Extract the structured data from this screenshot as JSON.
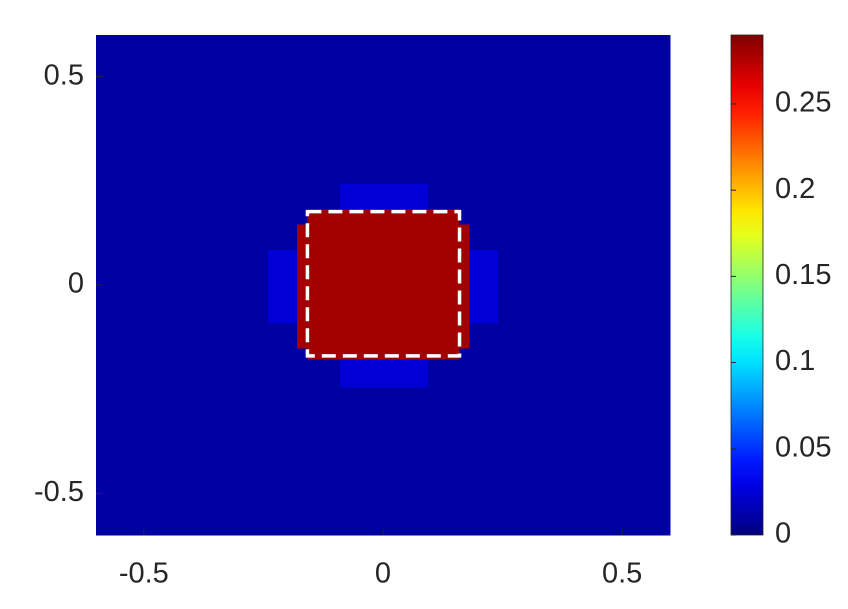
{
  "chart_data": {
    "type": "heatmap",
    "colormap": "jet",
    "x_edges": [
      -0.6,
      -0.24,
      -0.18,
      -0.158,
      -0.09,
      0.094,
      0.16,
      0.181,
      0.24,
      0.6
    ],
    "y_edges": [
      -0.6,
      -0.245,
      -0.178,
      -0.151,
      -0.09,
      0.085,
      0.146,
      0.183,
      0.244,
      0.6
    ],
    "z": [
      [
        0.01,
        0.01,
        0.01,
        0.01,
        0.01,
        0.01,
        0.01,
        0.01,
        0.01
      ],
      [
        0.01,
        0.01,
        0.01,
        0.01,
        0.025,
        0.01,
        0.01,
        0.01,
        0.01
      ],
      [
        0.01,
        0.01,
        0.01,
        0.28,
        0.28,
        0.28,
        0.01,
        0.01,
        0.01
      ],
      [
        0.01,
        0.01,
        0.28,
        0.28,
        0.28,
        0.28,
        0.28,
        0.01,
        0.01
      ],
      [
        0.01,
        0.025,
        0.28,
        0.28,
        0.28,
        0.28,
        0.28,
        0.025,
        0.01
      ],
      [
        0.01,
        0.01,
        0.28,
        0.28,
        0.28,
        0.28,
        0.28,
        0.01,
        0.01
      ],
      [
        0.01,
        0.01,
        0.01,
        0.28,
        0.28,
        0.28,
        0.01,
        0.01,
        0.01
      ],
      [
        0.01,
        0.01,
        0.01,
        0.01,
        0.025,
        0.01,
        0.01,
        0.01,
        0.01
      ],
      [
        0.01,
        0.01,
        0.01,
        0.01,
        0.01,
        0.01,
        0.01,
        0.01,
        0.01
      ]
    ],
    "xlim": [
      -0.6,
      0.6
    ],
    "ylim": [
      -0.6,
      0.6
    ],
    "xticks": [
      -0.5,
      0,
      0.5
    ],
    "yticks": [
      -0.5,
      0,
      0.5
    ],
    "clim": [
      0,
      0.29
    ],
    "cticks": [
      0,
      0.05,
      0.1,
      0.15,
      0.2,
      0.25
    ],
    "highlight": {
      "x": [
        -0.158,
        0.16
      ],
      "y": [
        -0.17,
        0.176
      ],
      "color": "#ffffff"
    }
  }
}
